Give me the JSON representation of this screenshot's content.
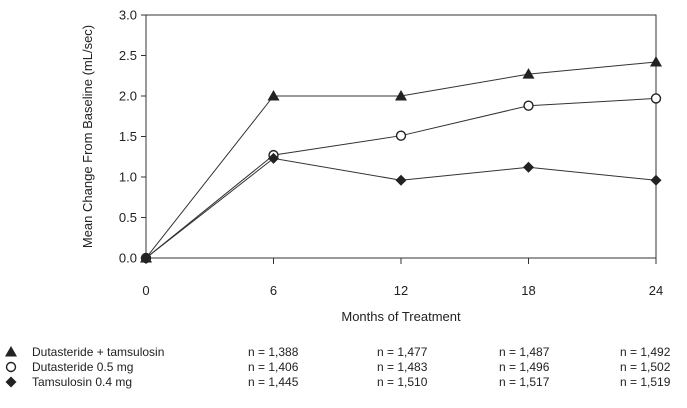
{
  "chart_data": {
    "type": "line",
    "x": [
      0,
      6,
      12,
      18,
      24
    ],
    "xlabel": "Months of Treatment",
    "ylabel": "Mean Change From Baseline (mL/sec)",
    "xlim": [
      0,
      24
    ],
    "ylim": [
      0.0,
      3.0
    ],
    "x_ticks": [
      "0",
      "6",
      "12",
      "18",
      "24"
    ],
    "y_ticks": [
      "0.0",
      "0.5",
      "1.0",
      "1.5",
      "2.0",
      "2.5",
      "3.0"
    ],
    "grid": false,
    "legend_position": "bottom-left",
    "series": [
      {
        "name": "Dutasteride + tamsulosin",
        "marker": "triangle",
        "values": [
          0.0,
          2.0,
          2.0,
          2.27,
          2.42
        ],
        "n_labels": [
          "n = 1,388",
          "n = 1,477",
          "n = 1,487",
          "n = 1,492"
        ]
      },
      {
        "name": "Dutasteride 0.5 mg",
        "marker": "circle-open",
        "values": [
          0.0,
          1.27,
          1.51,
          1.88,
          1.97
        ],
        "n_labels": [
          "n = 1,406",
          "n = 1,483",
          "n = 1,496",
          "n = 1,502"
        ]
      },
      {
        "name": "Tamsulosin 0.4 mg",
        "marker": "diamond",
        "values": [
          0.0,
          1.23,
          0.96,
          1.12,
          0.96
        ],
        "n_labels": [
          "n = 1,445",
          "n = 1,510",
          "n = 1,517",
          "n = 1,519"
        ]
      }
    ],
    "colors": {
      "line": "#333333",
      "marker": "#222222",
      "axis": "#333333"
    }
  }
}
